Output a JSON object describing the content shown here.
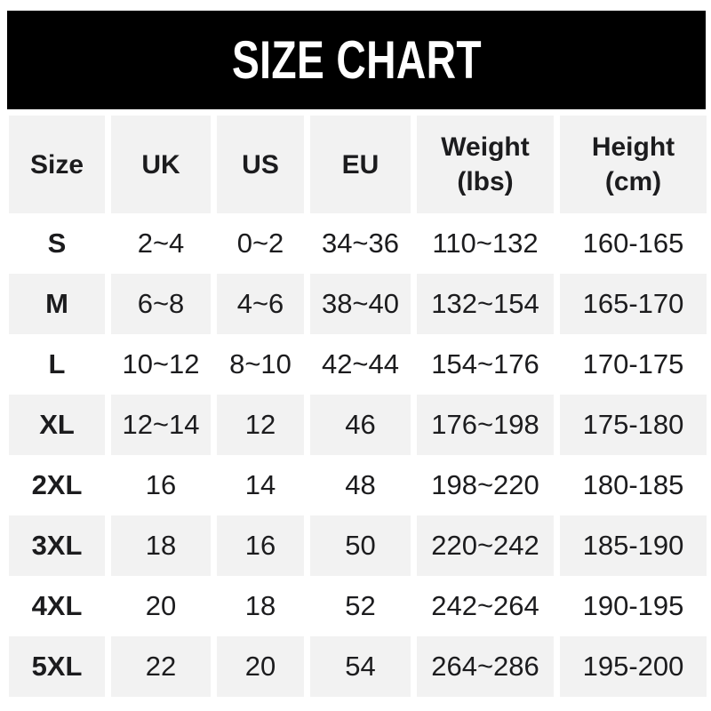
{
  "colors": {
    "banner_bg": "#000000",
    "banner_text": "#ffffff",
    "header_row_bg": "#f2f2f2",
    "alt_row_bg": "#f2f2f2",
    "row_bg": "#ffffff",
    "text_color": "#1c1c1e"
  },
  "chart_data": {
    "type": "table",
    "title": "SIZE CHART",
    "columns": [
      {
        "label": "Size",
        "sub": ""
      },
      {
        "label": "UK",
        "sub": ""
      },
      {
        "label": "US",
        "sub": ""
      },
      {
        "label": "EU",
        "sub": ""
      },
      {
        "label": "Weight",
        "sub": "(lbs)"
      },
      {
        "label": "Height",
        "sub": "(cm)"
      }
    ],
    "rows": [
      {
        "size": "S",
        "uk": "2~4",
        "us": "0~2",
        "eu": "34~36",
        "weight_lbs": "110~132",
        "height_cm": "160-165"
      },
      {
        "size": "M",
        "uk": "6~8",
        "us": "4~6",
        "eu": "38~40",
        "weight_lbs": "132~154",
        "height_cm": "165-170"
      },
      {
        "size": "L",
        "uk": "10~12",
        "us": "8~10",
        "eu": "42~44",
        "weight_lbs": "154~176",
        "height_cm": "170-175"
      },
      {
        "size": "XL",
        "uk": "12~14",
        "us": "12",
        "eu": "46",
        "weight_lbs": "176~198",
        "height_cm": "175-180"
      },
      {
        "size": "2XL",
        "uk": "16",
        "us": "14",
        "eu": "48",
        "weight_lbs": "198~220",
        "height_cm": "180-185"
      },
      {
        "size": "3XL",
        "uk": "18",
        "us": "16",
        "eu": "50",
        "weight_lbs": "220~242",
        "height_cm": "185-190"
      },
      {
        "size": "4XL",
        "uk": "20",
        "us": "18",
        "eu": "52",
        "weight_lbs": "242~264",
        "height_cm": "190-195"
      },
      {
        "size": "5XL",
        "uk": "22",
        "us": "20",
        "eu": "54",
        "weight_lbs": "264~286",
        "height_cm": "195-200"
      }
    ]
  }
}
